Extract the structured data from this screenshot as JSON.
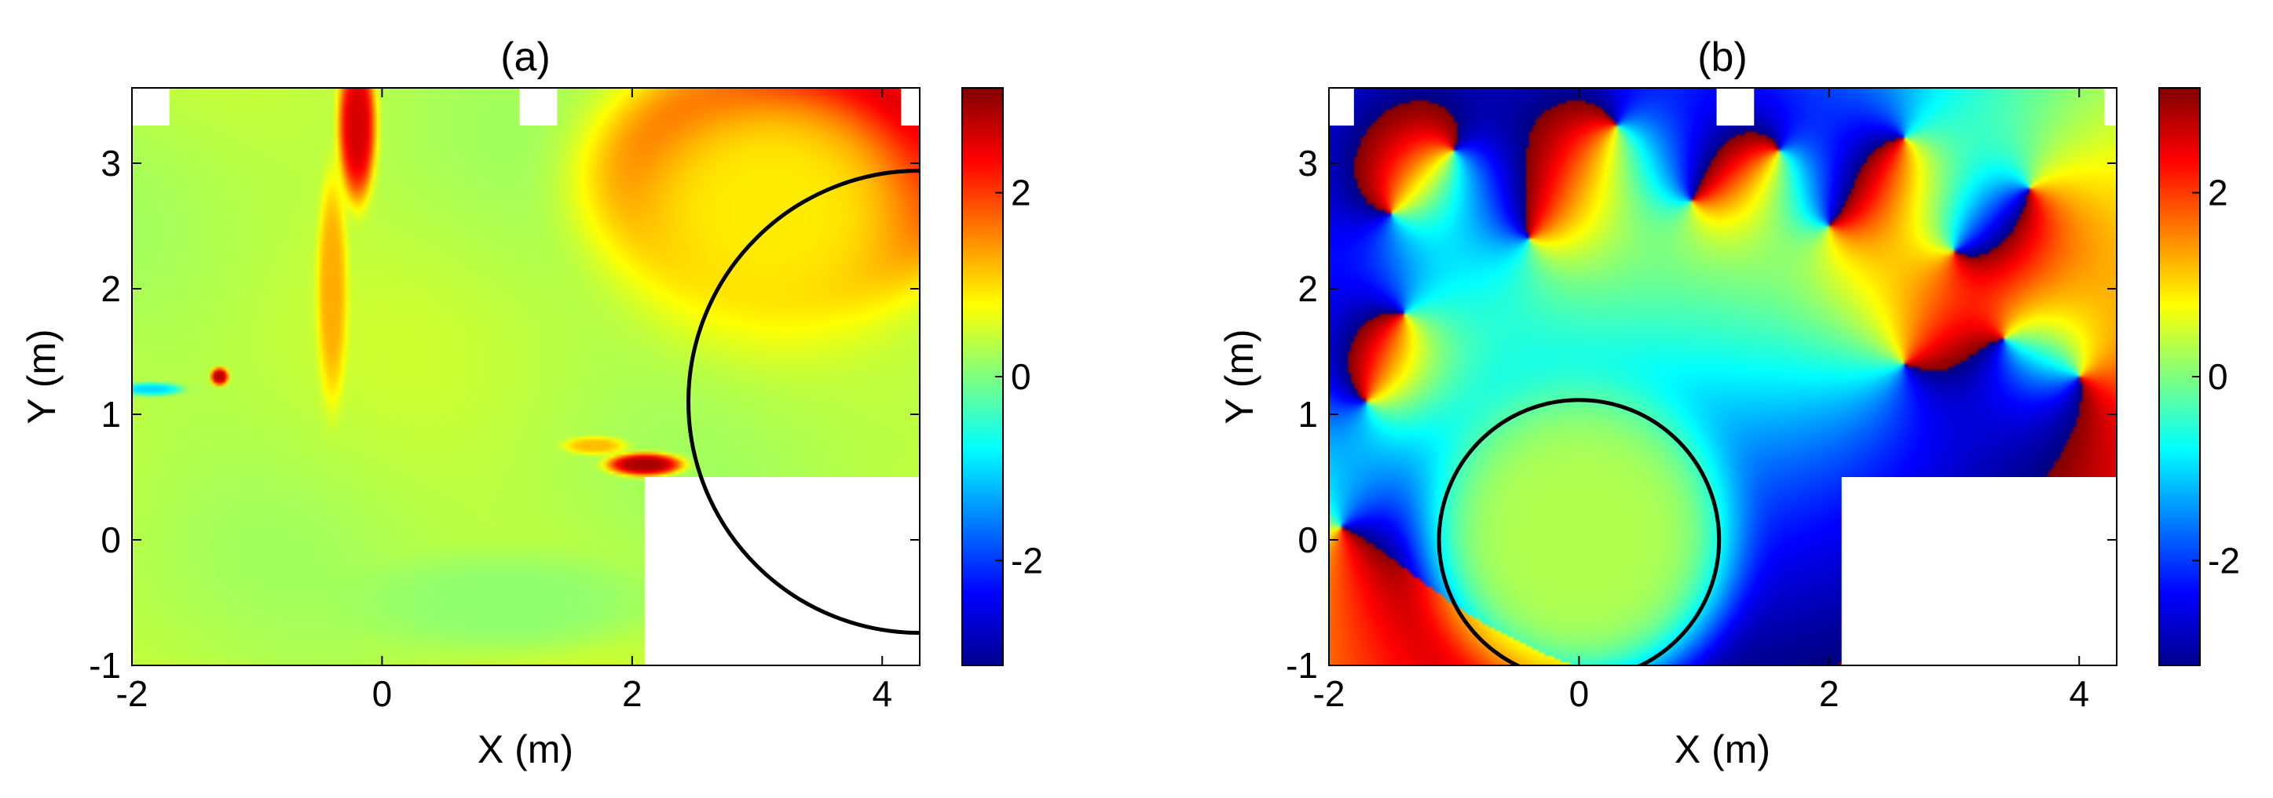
{
  "chart_data": [
    {
      "type": "heatmap",
      "title": "(a)",
      "xlabel": "X (m)",
      "ylabel": "Y (m)",
      "xlim": [
        -2,
        4.3
      ],
      "ylim": [
        -1,
        3.6
      ],
      "xticks": [
        -2,
        0,
        2,
        4
      ],
      "yticks": [
        -1,
        0,
        1,
        2,
        3
      ],
      "colorbar": {
        "range": [
          -3.14,
          3.14
        ],
        "ticks": [
          -2,
          0,
          2
        ],
        "colormap": "jet"
      },
      "background_value": 0.35,
      "blobs": [
        {
          "x": 3.3,
          "y": 2.9,
          "rx": 1.5,
          "ry": 0.95,
          "value": 3.14
        },
        {
          "x": 3.6,
          "y": 3.3,
          "rx": 0.8,
          "ry": 0.5,
          "value": 3.14
        },
        {
          "x": 3.1,
          "y": 2.6,
          "rx": 1.3,
          "ry": 1.1,
          "value": 0.9
        },
        {
          "x": -0.2,
          "y": 3.3,
          "rx": 0.15,
          "ry": 0.6,
          "value": 2.6
        },
        {
          "x": -0.4,
          "y": 2.0,
          "rx": 0.12,
          "ry": 0.9,
          "value": 1.3
        },
        {
          "x": -1.3,
          "y": 1.3,
          "rx": 0.07,
          "ry": 0.07,
          "value": 2.8
        },
        {
          "x": -1.85,
          "y": 1.2,
          "rx": 0.25,
          "ry": 0.05,
          "value": -1.0
        },
        {
          "x": 2.1,
          "y": 0.6,
          "rx": 0.3,
          "ry": 0.09,
          "value": 2.9
        },
        {
          "x": 1.7,
          "y": 0.75,
          "rx": 0.25,
          "ry": 0.07,
          "value": 1.2
        },
        {
          "x": 1.0,
          "y": -0.5,
          "rx": 1.2,
          "ry": 0.4,
          "value": 0.1
        }
      ],
      "masks": [
        {
          "x": [
            -2,
            -1.7
          ],
          "y": [
            3.3,
            3.6
          ]
        },
        {
          "x": [
            1.1,
            1.4
          ],
          "y": [
            3.3,
            3.6
          ]
        },
        {
          "x": [
            4.15,
            4.3
          ],
          "y": [
            3.3,
            3.6
          ]
        },
        {
          "x": [
            2.1,
            4.3
          ],
          "y": [
            -1,
            0.5
          ]
        }
      ],
      "circle": {
        "cx": 4.3,
        "cy": 1.1,
        "r": 1.85
      }
    },
    {
      "type": "heatmap",
      "title": "(b)",
      "xlabel": "X (m)",
      "ylabel": "Y (m)",
      "xlim": [
        -2,
        4.3
      ],
      "ylim": [
        -1,
        3.6
      ],
      "xticks": [
        -2,
        0,
        2,
        4
      ],
      "yticks": [
        -1,
        0,
        1,
        2,
        3
      ],
      "colorbar": {
        "range": [
          -3.14,
          3.14
        ],
        "ticks": [
          -2,
          0,
          2
        ],
        "colormap": "jet"
      },
      "background_value": 0.3,
      "vortices": [
        {
          "x": -1.5,
          "y": 2.6,
          "s": 1
        },
        {
          "x": -1.0,
          "y": 3.1,
          "s": -1
        },
        {
          "x": -0.4,
          "y": 2.4,
          "s": 1
        },
        {
          "x": 0.3,
          "y": 3.3,
          "s": -1
        },
        {
          "x": 0.9,
          "y": 2.7,
          "s": 1
        },
        {
          "x": 1.6,
          "y": 3.1,
          "s": -1
        },
        {
          "x": 2.0,
          "y": 2.5,
          "s": 1
        },
        {
          "x": 2.6,
          "y": 3.2,
          "s": -1
        },
        {
          "x": 3.0,
          "y": 2.3,
          "s": 1
        },
        {
          "x": 3.6,
          "y": 2.8,
          "s": -1
        },
        {
          "x": 3.4,
          "y": 1.6,
          "s": 1
        },
        {
          "x": 4.0,
          "y": 1.3,
          "s": -1
        },
        {
          "x": 2.6,
          "y": 1.4,
          "s": -1
        },
        {
          "x": -1.7,
          "y": 1.1,
          "s": 1
        },
        {
          "x": -1.4,
          "y": 1.8,
          "s": -1
        },
        {
          "x": -1.9,
          "y": 0.1,
          "s": 1
        }
      ],
      "masks": [
        {
          "x": [
            -2,
            -1.8
          ],
          "y": [
            3.3,
            3.6
          ]
        },
        {
          "x": [
            1.1,
            1.4
          ],
          "y": [
            3.3,
            3.6
          ]
        },
        {
          "x": [
            4.2,
            4.3
          ],
          "y": [
            3.3,
            3.6
          ]
        },
        {
          "x": [
            2.1,
            4.3
          ],
          "y": [
            -1,
            0.5
          ]
        }
      ],
      "circle": {
        "cx": 0,
        "cy": 0,
        "r": 1.12
      }
    }
  ]
}
